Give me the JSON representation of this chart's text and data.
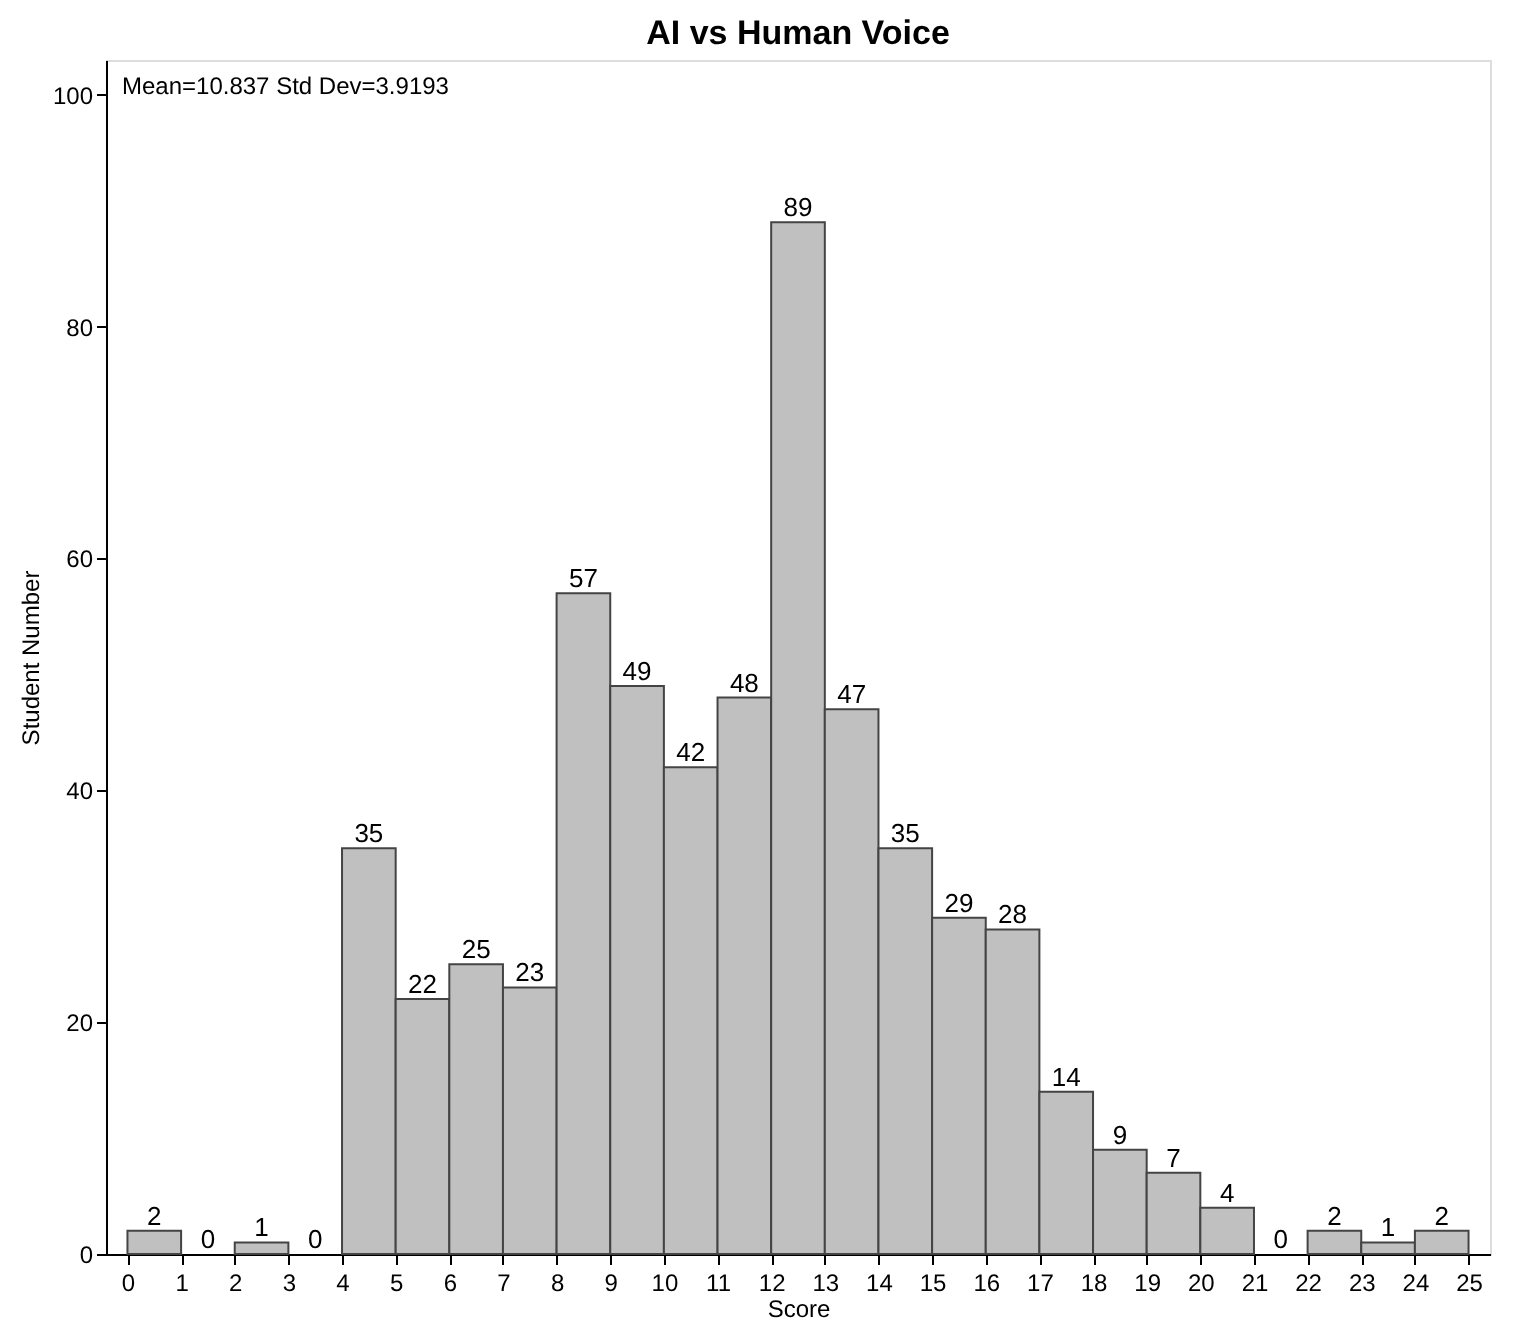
{
  "chart_data": {
    "type": "histogram",
    "title": "AI vs Human Voice",
    "xlabel": "Score",
    "ylabel": "Student Number",
    "bins": [
      0,
      1,
      2,
      3,
      4,
      5,
      6,
      7,
      8,
      9,
      10,
      11,
      12,
      13,
      14,
      15,
      16,
      17,
      18,
      19,
      20,
      21,
      22,
      23,
      24,
      25
    ],
    "values": [
      2,
      0,
      1,
      0,
      35,
      22,
      25,
      23,
      57,
      49,
      42,
      48,
      89,
      47,
      35,
      29,
      28,
      14,
      9,
      7,
      4,
      0,
      2,
      1,
      2
    ],
    "color": "#c0c0c0",
    "data_labels": true,
    "grid": false,
    "xlim": [
      -0.4,
      25.4
    ],
    "xticks": [
      0,
      1,
      2,
      3,
      4,
      5,
      6,
      7,
      8,
      9,
      10,
      11,
      12,
      13,
      14,
      15,
      16,
      17,
      18,
      19,
      20,
      21,
      22,
      23,
      24,
      25
    ],
    "ylim": [
      0,
      103
    ],
    "yticks": [
      0,
      20,
      40,
      60,
      80,
      100
    ],
    "annotations": [
      "Mean=10.837  Std Dev=3.9193"
    ]
  }
}
